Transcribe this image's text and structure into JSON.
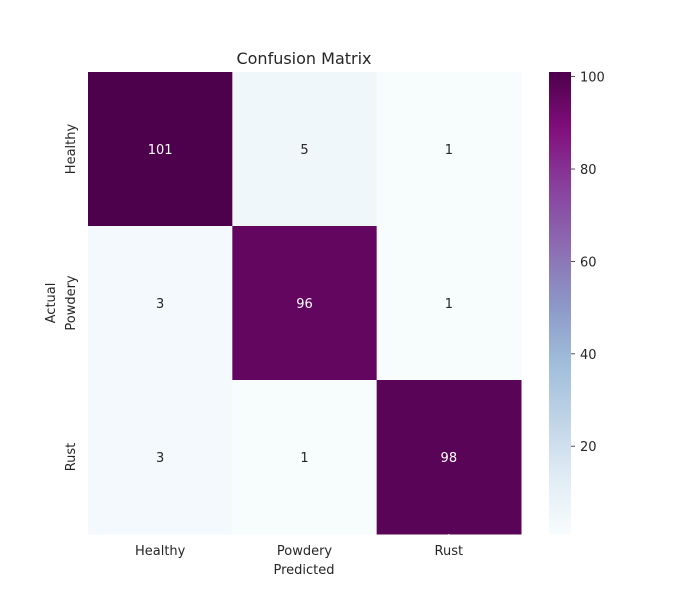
{
  "chart_data": {
    "type": "heatmap",
    "title": "Confusion Matrix",
    "xlabel": "Predicted",
    "ylabel": "Actual",
    "x_categories": [
      "Healthy",
      "Powdery",
      "Rust"
    ],
    "y_categories": [
      "Healthy",
      "Powdery",
      "Rust"
    ],
    "values": [
      [
        101,
        5,
        1
      ],
      [
        3,
        96,
        1
      ],
      [
        3,
        1,
        98
      ]
    ],
    "colormap": "BuPu",
    "colormap_stops": [
      "#f7fcfd",
      "#e0ecf4",
      "#bfd3e6",
      "#9ebcda",
      "#8c96c6",
      "#8c6bb1",
      "#88419d",
      "#810f7c",
      "#4d004b"
    ],
    "color_range": [
      1,
      101
    ],
    "colorbar_ticks": [
      20,
      40,
      60,
      80,
      100
    ]
  }
}
